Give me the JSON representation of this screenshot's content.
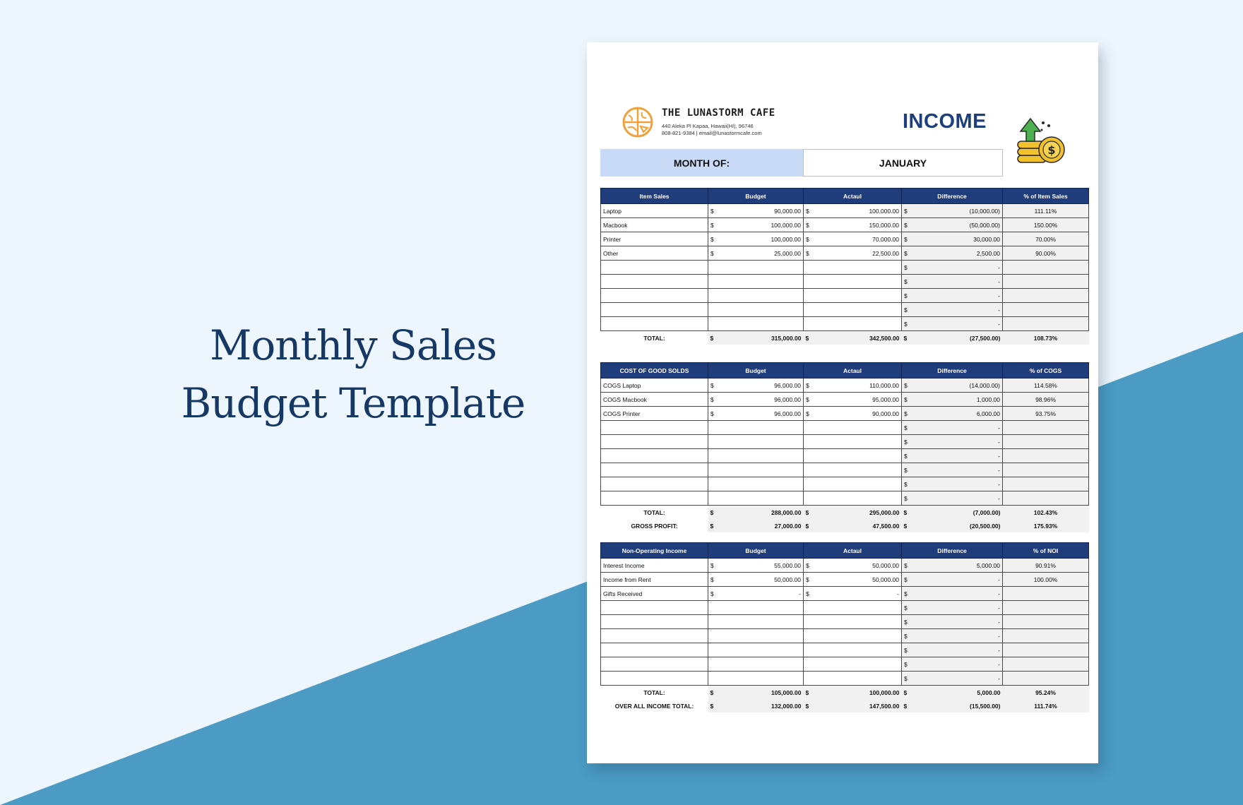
{
  "hero": {
    "line1": "Monthly Sales",
    "line2": "Budget Template"
  },
  "company": {
    "name": "THE LUNASTORM CAFE",
    "address": "440 Aleka Pl Kapaa, Hawaii(HI), 96746",
    "contact": "808-821-9384 | email@lunastormcafe.com"
  },
  "doc_title": "INCOME",
  "month": {
    "label": "MONTH OF:",
    "value": "JANUARY"
  },
  "colors": {
    "header": "#203d7b",
    "accent_band": "#4b9bc4",
    "month_fill": "#c9daf6",
    "title": "#1d3f7c"
  },
  "sales": {
    "headers": [
      "Item Sales",
      "Budget",
      "Actaul",
      "Difference",
      "% of Item Sales"
    ],
    "rows": [
      {
        "name": "Laptop",
        "budget": "90,000.00",
        "actual": "100,000.00",
        "diff": "(10,000.00)",
        "pct": "111.11%"
      },
      {
        "name": "Macbook",
        "budget": "100,000.00",
        "actual": "150,000.00",
        "diff": "(50,000.00)",
        "pct": "150.00%"
      },
      {
        "name": "Printer",
        "budget": "100,000.00",
        "actual": "70,000.00",
        "diff": "30,000.00",
        "pct": "70.00%"
      },
      {
        "name": "Other",
        "budget": "25,000.00",
        "actual": "22,500.00",
        "diff": "2,500.00",
        "pct": "90.00%"
      },
      {
        "name": "",
        "budget": "",
        "actual": "",
        "diff": "-",
        "pct": ""
      },
      {
        "name": "",
        "budget": "",
        "actual": "",
        "diff": "-",
        "pct": ""
      },
      {
        "name": "",
        "budget": "",
        "actual": "",
        "diff": "-",
        "pct": ""
      },
      {
        "name": "",
        "budget": "",
        "actual": "",
        "diff": "-",
        "pct": ""
      },
      {
        "name": "",
        "budget": "",
        "actual": "",
        "diff": "-",
        "pct": ""
      }
    ],
    "totals": [
      {
        "label": "TOTAL:",
        "budget": "315,000.00",
        "actual": "342,500.00",
        "diff": "(27,500.00)",
        "pct": "108.73%"
      }
    ]
  },
  "cogs": {
    "headers": [
      "COST OF GOOD SOLDS",
      "Budget",
      "Actaul",
      "Difference",
      "% of COGS"
    ],
    "rows": [
      {
        "name": "COGS Laptop",
        "budget": "96,000.00",
        "actual": "110,000.00",
        "diff": "(14,000.00)",
        "pct": "114.58%"
      },
      {
        "name": "COGS Macbook",
        "budget": "96,000.00",
        "actual": "95,000.00",
        "diff": "1,000.00",
        "pct": "98.96%"
      },
      {
        "name": "COGS Printer",
        "budget": "96,000.00",
        "actual": "90,000.00",
        "diff": "6,000.00",
        "pct": "93.75%"
      },
      {
        "name": "",
        "budget": "",
        "actual": "",
        "diff": "-",
        "pct": ""
      },
      {
        "name": "",
        "budget": "",
        "actual": "",
        "diff": "-",
        "pct": ""
      },
      {
        "name": "",
        "budget": "",
        "actual": "",
        "diff": "-",
        "pct": ""
      },
      {
        "name": "",
        "budget": "",
        "actual": "",
        "diff": "-",
        "pct": ""
      },
      {
        "name": "",
        "budget": "",
        "actual": "",
        "diff": "-",
        "pct": ""
      },
      {
        "name": "",
        "budget": "",
        "actual": "",
        "diff": "-",
        "pct": ""
      }
    ],
    "totals": [
      {
        "label": "TOTAL:",
        "budget": "288,000.00",
        "actual": "295,000.00",
        "diff": "(7,000.00)",
        "pct": "102.43%"
      },
      {
        "label": "GROSS PROFIT:",
        "budget": "27,000.00",
        "actual": "47,500.00",
        "diff": "(20,500.00)",
        "pct": "175.93%"
      }
    ]
  },
  "noi": {
    "headers": [
      "Non-Operating Income",
      "Budget",
      "Actaul",
      "Difference",
      "% of NOI"
    ],
    "rows": [
      {
        "name": "Interest Income",
        "budget": "55,000.00",
        "actual": "50,000.00",
        "diff": "5,000.00",
        "pct": "90.91%"
      },
      {
        "name": "Income from Rent",
        "budget": "50,000.00",
        "actual": "50,000.00",
        "diff": "-",
        "pct": "100.00%"
      },
      {
        "name": "Gifts Received",
        "budget": "-",
        "actual": "-",
        "diff": "-",
        "pct": ""
      },
      {
        "name": "",
        "budget": "",
        "actual": "",
        "diff": "-",
        "pct": ""
      },
      {
        "name": "",
        "budget": "",
        "actual": "",
        "diff": "-",
        "pct": ""
      },
      {
        "name": "",
        "budget": "",
        "actual": "",
        "diff": "-",
        "pct": ""
      },
      {
        "name": "",
        "budget": "",
        "actual": "",
        "diff": "-",
        "pct": ""
      },
      {
        "name": "",
        "budget": "",
        "actual": "",
        "diff": "-",
        "pct": ""
      },
      {
        "name": "",
        "budget": "",
        "actual": "",
        "diff": "-",
        "pct": ""
      }
    ],
    "totals": [
      {
        "label": "TOTAL:",
        "budget": "105,000.00",
        "actual": "100,000.00",
        "diff": "5,000.00",
        "pct": "95.24%"
      },
      {
        "label": "OVER ALL INCOME TOTAL:",
        "budget": "132,000.00",
        "actual": "147,500.00",
        "diff": "(15,500.00)",
        "pct": "111.74%"
      }
    ]
  }
}
